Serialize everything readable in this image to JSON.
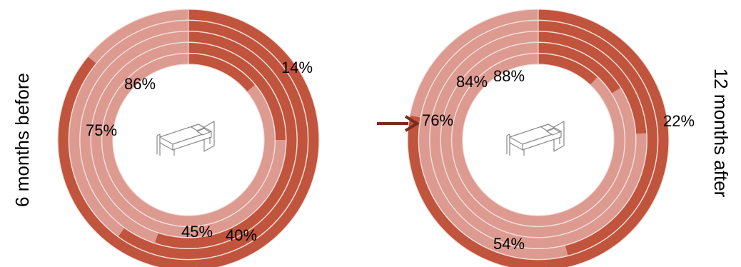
{
  "colors": {
    "dark": "#C0543D",
    "light": "#DC9A90",
    "divider": "#F4DDD8",
    "arrow": "#7A2A20",
    "icon_stroke": "#8A8A8A"
  },
  "icon": "bed-icon",
  "chart_data": [
    {
      "type": "radial-bar",
      "side_label": "6 months before",
      "rings": [
        {
          "label": "86%",
          "value": 86
        },
        {
          "label": "75%",
          "value": 75
        },
        {
          "label": "45%",
          "value": 45
        },
        {
          "label": "40%",
          "value": 40
        },
        {
          "label": "14%",
          "value": 14
        }
      ]
    },
    {
      "type": "radial-bar",
      "side_label": "12 months after",
      "has_arrow": true,
      "rings": [
        {
          "label": "88%",
          "value": 88
        },
        {
          "label": "84%",
          "value": 84
        },
        {
          "label": "76%",
          "value": 76
        },
        {
          "label": "54%",
          "value": 54
        },
        {
          "label": "22%",
          "value": 22
        }
      ]
    }
  ]
}
